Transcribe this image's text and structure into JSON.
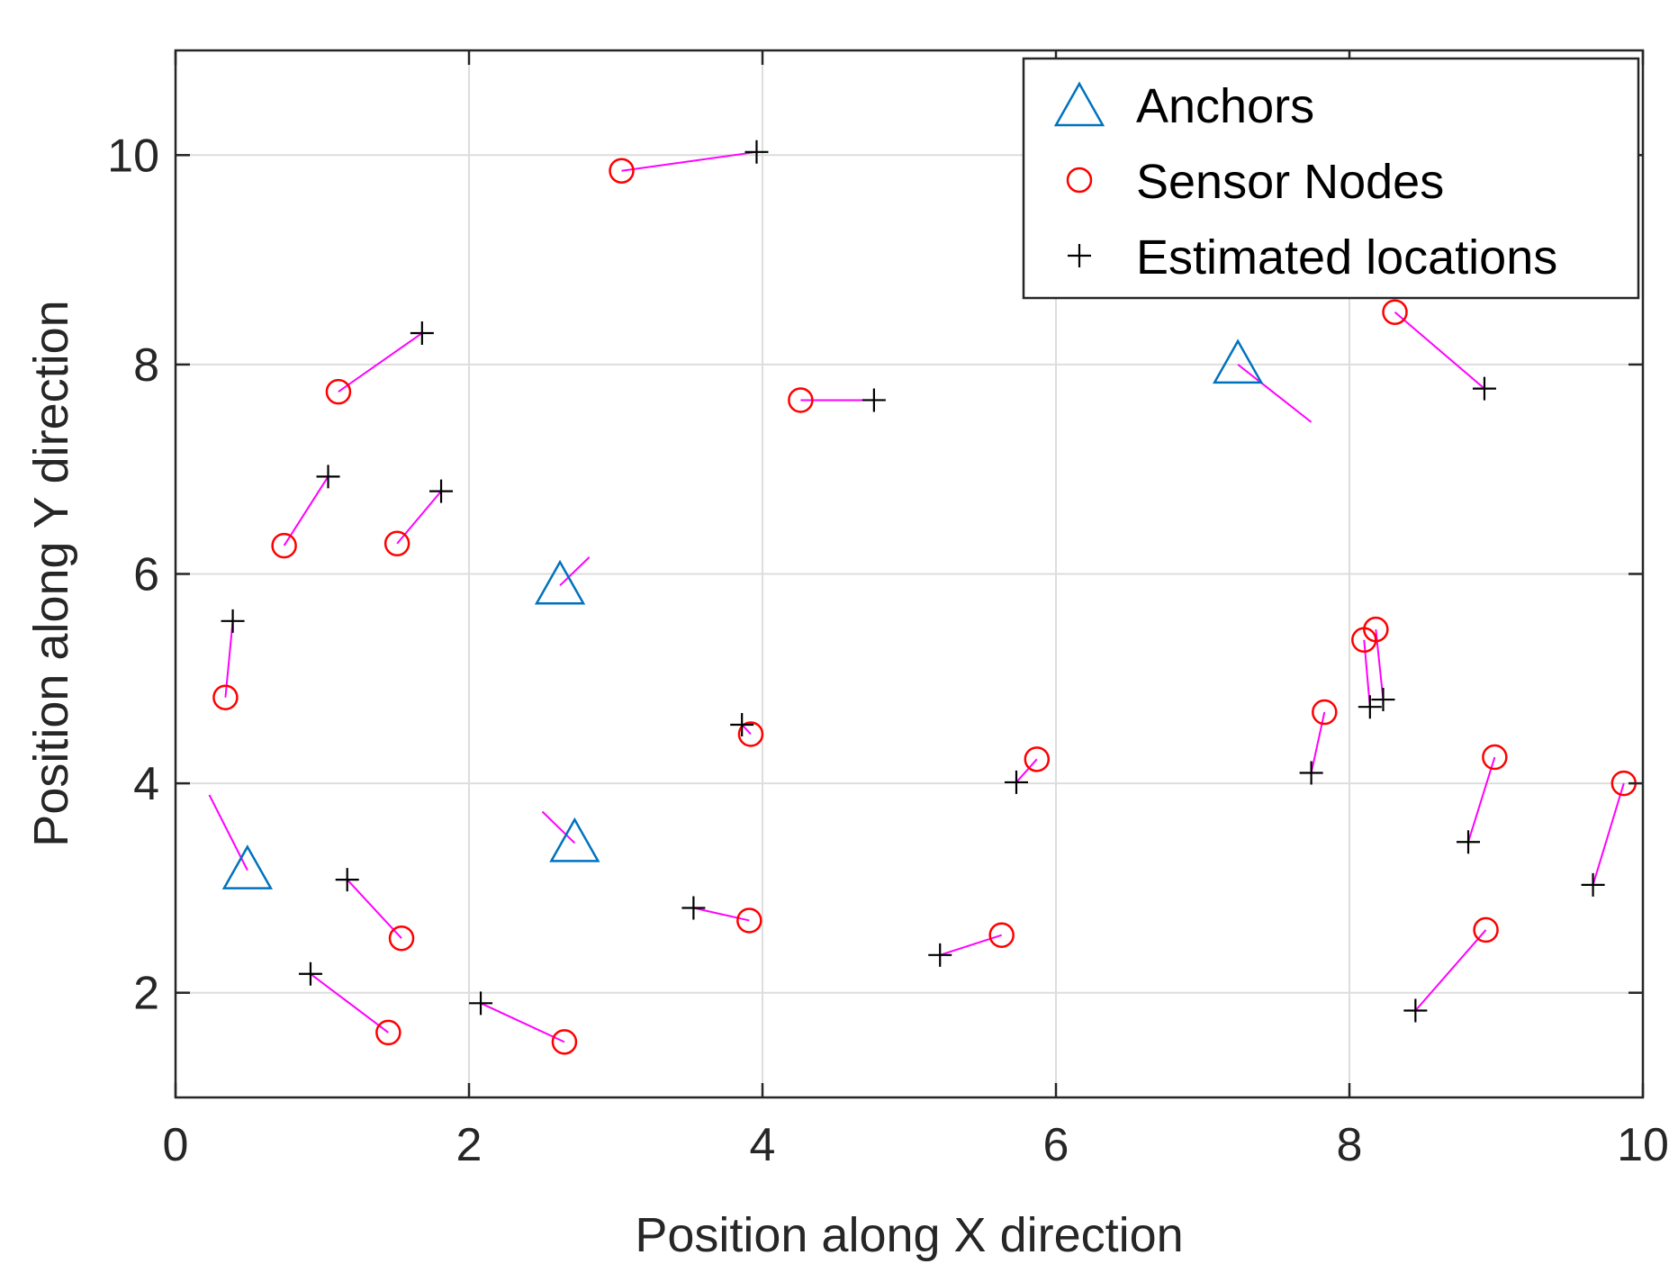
{
  "chart_data": {
    "type": "scatter",
    "title": "",
    "xlabel": "Position along X direction",
    "ylabel": "Position along Y direction",
    "xlim": [
      0,
      10
    ],
    "ylim": [
      1,
      11
    ],
    "xticks": [
      0,
      2,
      4,
      6,
      8,
      10
    ],
    "yticks": [
      2,
      4,
      6,
      8,
      10
    ],
    "grid": true,
    "legend_position": "top-right",
    "colors": {
      "anchors": "#0072BD",
      "sensors": "#FF0000",
      "estimates": "#000000",
      "error_lines": "#FF00FF",
      "grid": "#DDDDDD",
      "axes": "#262626"
    },
    "series": [
      {
        "name": "Anchors",
        "marker": "triangle",
        "points": [
          {
            "x": 0.49,
            "y": 3.17
          },
          {
            "x": 2.62,
            "y": 5.89
          },
          {
            "x": 2.72,
            "y": 3.43
          },
          {
            "x": 7.24,
            "y": 8.0
          }
        ]
      },
      {
        "name": "Sensor Nodes",
        "marker": "circle",
        "points": [
          {
            "x": 3.04,
            "y": 9.85
          },
          {
            "x": 1.11,
            "y": 7.74
          },
          {
            "x": 0.74,
            "y": 6.27
          },
          {
            "x": 1.51,
            "y": 6.29
          },
          {
            "x": 0.34,
            "y": 4.82
          },
          {
            "x": 4.26,
            "y": 7.66
          },
          {
            "x": 8.31,
            "y": 8.5
          },
          {
            "x": 3.92,
            "y": 4.47
          },
          {
            "x": 5.87,
            "y": 4.23
          },
          {
            "x": 7.83,
            "y": 4.68
          },
          {
            "x": 8.1,
            "y": 5.37
          },
          {
            "x": 8.18,
            "y": 5.47
          },
          {
            "x": 8.99,
            "y": 4.25
          },
          {
            "x": 9.87,
            "y": 4.0
          },
          {
            "x": 1.54,
            "y": 2.52
          },
          {
            "x": 1.45,
            "y": 1.62
          },
          {
            "x": 2.65,
            "y": 1.53
          },
          {
            "x": 3.91,
            "y": 2.69
          },
          {
            "x": 5.63,
            "y": 2.55
          },
          {
            "x": 8.93,
            "y": 2.6
          }
        ]
      },
      {
        "name": "Estimated locations",
        "marker": "plus",
        "points": [
          {
            "x": 3.96,
            "y": 10.03
          },
          {
            "x": 1.68,
            "y": 8.3
          },
          {
            "x": 1.04,
            "y": 6.93
          },
          {
            "x": 1.81,
            "y": 6.79
          },
          {
            "x": 0.39,
            "y": 5.55
          },
          {
            "x": 4.76,
            "y": 7.66
          },
          {
            "x": 8.92,
            "y": 7.77
          },
          {
            "x": 3.86,
            "y": 4.56
          },
          {
            "x": 5.73,
            "y": 4.01
          },
          {
            "x": 7.74,
            "y": 4.1
          },
          {
            "x": 8.14,
            "y": 4.73
          },
          {
            "x": 8.23,
            "y": 4.8
          },
          {
            "x": 8.81,
            "y": 3.44
          },
          {
            "x": 9.66,
            "y": 3.03
          },
          {
            "x": 1.17,
            "y": 3.08
          },
          {
            "x": 0.92,
            "y": 2.18
          },
          {
            "x": 2.08,
            "y": 1.9
          },
          {
            "x": 3.53,
            "y": 2.81
          },
          {
            "x": 5.21,
            "y": 2.36
          },
          {
            "x": 8.45,
            "y": 1.83
          }
        ]
      }
    ],
    "anchor_error_lines": [
      {
        "from": {
          "x": 0.49,
          "y": 3.17
        },
        "to": {
          "x": 0.23,
          "y": 3.89
        }
      },
      {
        "from": {
          "x": 2.62,
          "y": 5.89
        },
        "to": {
          "x": 2.82,
          "y": 6.16
        }
      },
      {
        "from": {
          "x": 2.72,
          "y": 3.43
        },
        "to": {
          "x": 2.5,
          "y": 3.73
        }
      },
      {
        "from": {
          "x": 7.24,
          "y": 8.0
        },
        "to": {
          "x": 7.74,
          "y": 7.45
        }
      }
    ]
  }
}
